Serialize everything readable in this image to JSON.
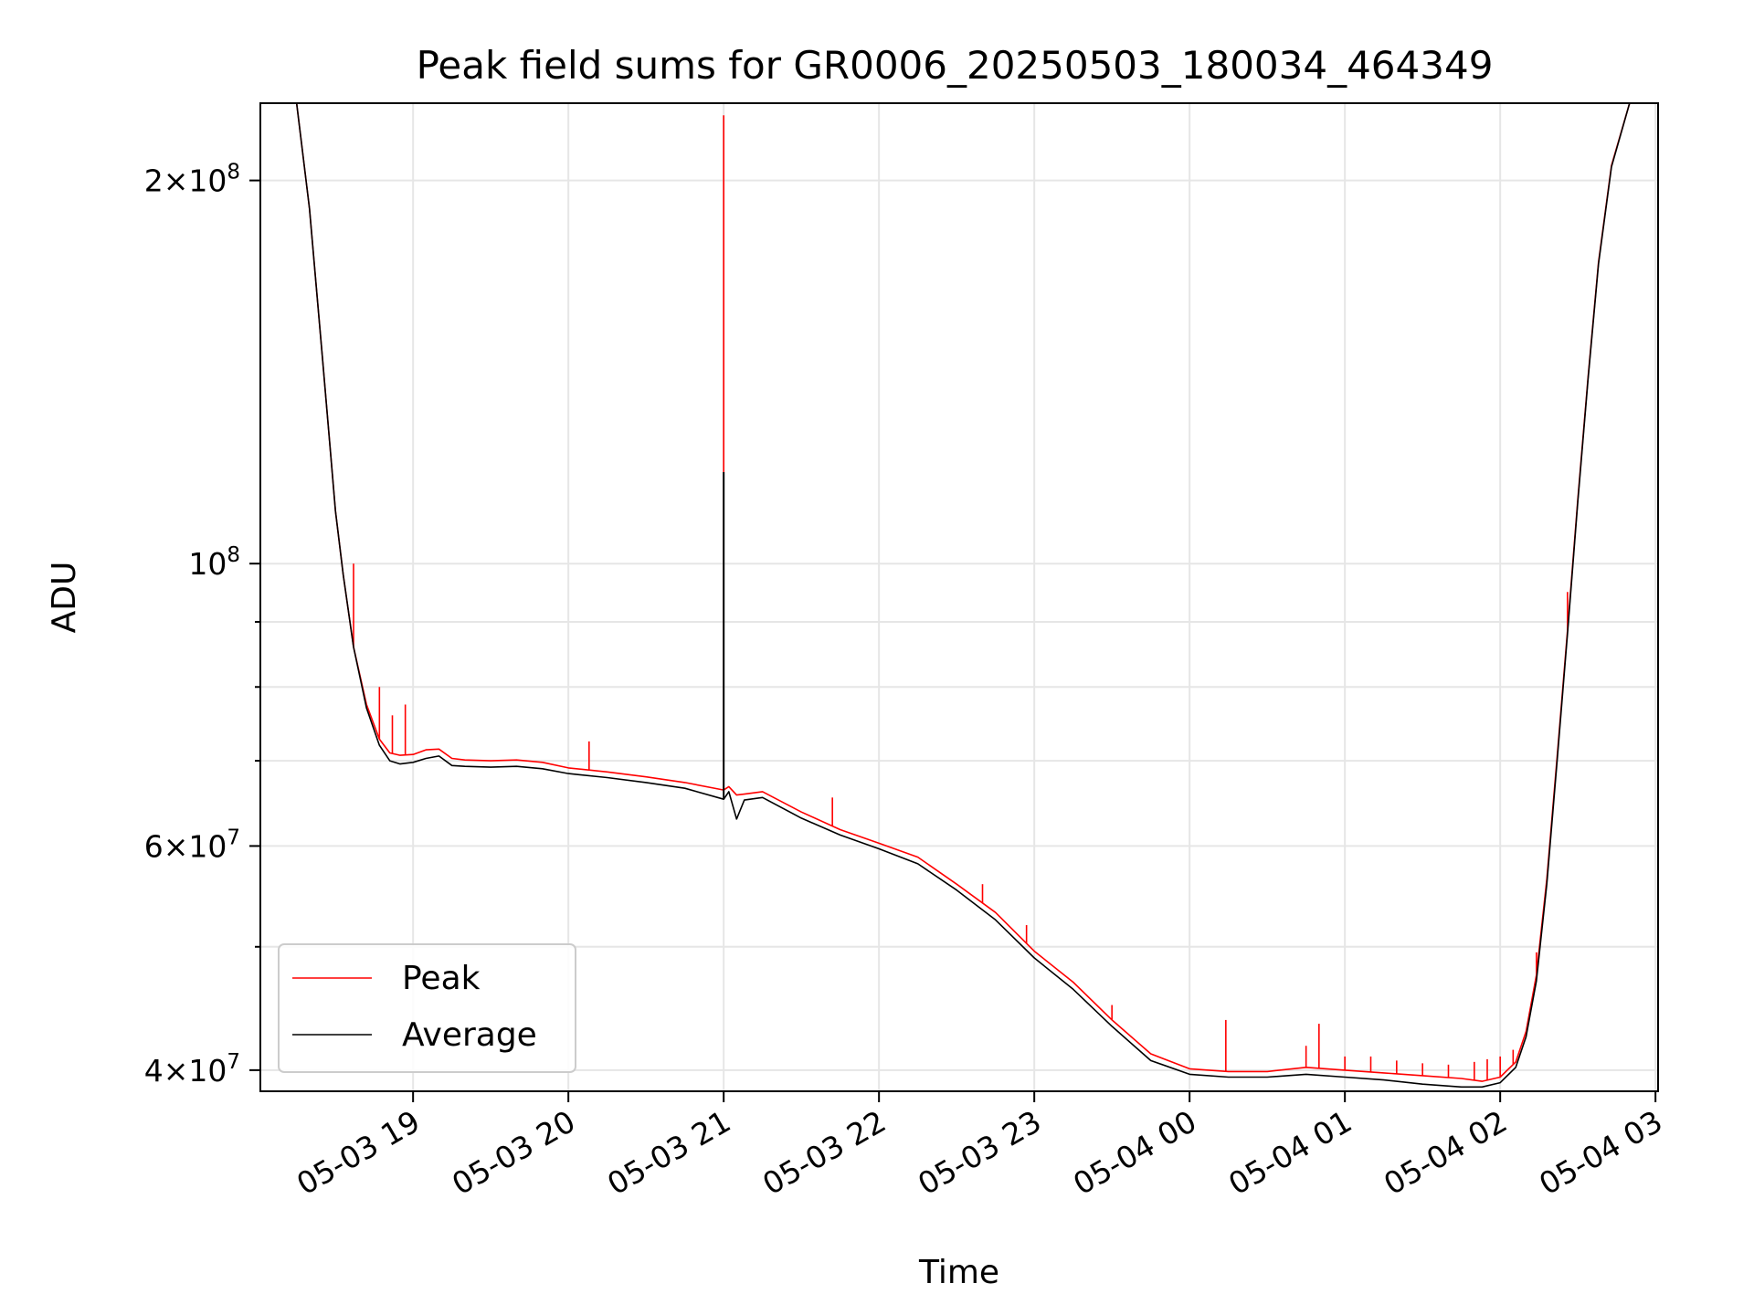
{
  "chart_data": {
    "type": "line",
    "title": "Peak field sums for GR0006_20250503_180034_464349",
    "xlabel": "Time",
    "ylabel": "ADU",
    "x_unit": "datetime",
    "xlim": [
      "2025-05-03 18:01",
      "2025-05-04 03:01"
    ],
    "y_scale": "log",
    "ylim": [
      38500000,
      230000000
    ],
    "x_ticks": [
      {
        "value": "2025-05-03 19:00",
        "label": "05-03 19"
      },
      {
        "value": "2025-05-03 20:00",
        "label": "05-03 20"
      },
      {
        "value": "2025-05-03 21:00",
        "label": "05-03 21"
      },
      {
        "value": "2025-05-03 22:00",
        "label": "05-03 22"
      },
      {
        "value": "2025-05-03 23:00",
        "label": "05-03 23"
      },
      {
        "value": "2025-05-04 00:00",
        "label": "05-04 00"
      },
      {
        "value": "2025-05-04 01:00",
        "label": "05-04 01"
      },
      {
        "value": "2025-05-04 02:00",
        "label": "05-04 02"
      },
      {
        "value": "2025-05-04 03:00",
        "label": "05-04 03"
      }
    ],
    "y_ticks_major": [
      {
        "value": 40000000,
        "base": "4",
        "exp": "7"
      },
      {
        "value": 60000000,
        "base": "6",
        "exp": "7"
      },
      {
        "value": 100000000,
        "base": "",
        "exp": "8"
      },
      {
        "value": 200000000,
        "base": "2",
        "exp": "8"
      }
    ],
    "y_ticks_minor": [
      50000000,
      70000000,
      80000000,
      90000000
    ],
    "grid": true,
    "legend": "lower-left",
    "colors": {
      "Peak": "#ff0000",
      "Average": "#000000"
    },
    "series": [
      {
        "name": "Average",
        "x": [
          "2025-05-03 18:01",
          "2025-05-03 18:15",
          "2025-05-03 18:20",
          "2025-05-03 18:25",
          "2025-05-03 18:28",
          "2025-05-03 18:30",
          "2025-05-03 18:33",
          "2025-05-03 18:37",
          "2025-05-03 18:42",
          "2025-05-03 18:47",
          "2025-05-03 18:51",
          "2025-05-03 18:55",
          "2025-05-03 19:00",
          "2025-05-03 19:05",
          "2025-05-03 19:10",
          "2025-05-03 19:15",
          "2025-05-03 19:20",
          "2025-05-03 19:30",
          "2025-05-03 19:40",
          "2025-05-03 19:50",
          "2025-05-03 20:00",
          "2025-05-03 20:15",
          "2025-05-03 20:30",
          "2025-05-03 20:45",
          "2025-05-03 21:00",
          "2025-05-03 21:02",
          "2025-05-03 21:05",
          "2025-05-03 21:08",
          "2025-05-03 21:15",
          "2025-05-03 21:30",
          "2025-05-03 21:45",
          "2025-05-03 22:00",
          "2025-05-03 22:15",
          "2025-05-03 22:30",
          "2025-05-03 22:45",
          "2025-05-03 23:00",
          "2025-05-03 23:15",
          "2025-05-03 23:30",
          "2025-05-03 23:45",
          "2025-05-04 00:00",
          "2025-05-04 00:15",
          "2025-05-04 00:30",
          "2025-05-04 00:45",
          "2025-05-04 01:00",
          "2025-05-04 01:15",
          "2025-05-04 01:30",
          "2025-05-04 01:45",
          "2025-05-04 01:53",
          "2025-05-04 02:00",
          "2025-05-04 02:06",
          "2025-05-04 02:10",
          "2025-05-04 02:14",
          "2025-05-04 02:18",
          "2025-05-04 02:22",
          "2025-05-04 02:26",
          "2025-05-04 02:30",
          "2025-05-04 02:34",
          "2025-05-04 02:38",
          "2025-05-04 02:43",
          "2025-05-04 02:50"
        ],
        "values": [
          230000000,
          230000000,
          190000000,
          145000000,
          123000000,
          110000000,
          98000000,
          86000000,
          77000000,
          72000000,
          70000000,
          69600000,
          69800000,
          70300000,
          70600000,
          69400000,
          69300000,
          69200000,
          69300000,
          69000000,
          68400000,
          67900000,
          67300000,
          66600000,
          65300000,
          66200000,
          63000000,
          65200000,
          65500000,
          63100000,
          61200000,
          59700000,
          58100000,
          55400000,
          52500000,
          49000000,
          46300000,
          43300000,
          40700000,
          39700000,
          39500000,
          39500000,
          39700000,
          39500000,
          39300000,
          39000000,
          38800000,
          38800000,
          39100000,
          40200000,
          42500000,
          47000000,
          56000000,
          70000000,
          88000000,
          112000000,
          140000000,
          172000000,
          205000000,
          230000000
        ]
      },
      {
        "name": "Peak",
        "x": [
          "2025-05-03 18:01",
          "2025-05-03 18:15",
          "2025-05-03 18:20",
          "2025-05-03 18:25",
          "2025-05-03 18:28",
          "2025-05-03 18:30",
          "2025-05-03 18:33",
          "2025-05-03 18:37",
          "2025-05-03 18:42",
          "2025-05-03 18:47",
          "2025-05-03 18:51",
          "2025-05-03 18:55",
          "2025-05-03 19:00",
          "2025-05-03 19:05",
          "2025-05-03 19:10",
          "2025-05-03 19:15",
          "2025-05-03 19:20",
          "2025-05-03 19:30",
          "2025-05-03 19:40",
          "2025-05-03 19:50",
          "2025-05-03 20:00",
          "2025-05-03 20:15",
          "2025-05-03 20:30",
          "2025-05-03 20:45",
          "2025-05-03 21:00",
          "2025-05-03 21:02",
          "2025-05-03 21:05",
          "2025-05-03 21:08",
          "2025-05-03 21:15",
          "2025-05-03 21:30",
          "2025-05-03 21:45",
          "2025-05-03 22:00",
          "2025-05-03 22:15",
          "2025-05-03 22:30",
          "2025-05-03 22:45",
          "2025-05-03 23:00",
          "2025-05-03 23:15",
          "2025-05-03 23:30",
          "2025-05-03 23:45",
          "2025-05-04 00:00",
          "2025-05-04 00:15",
          "2025-05-04 00:30",
          "2025-05-04 00:45",
          "2025-05-04 01:00",
          "2025-05-04 01:15",
          "2025-05-04 01:30",
          "2025-05-04 01:45",
          "2025-05-04 01:53",
          "2025-05-04 02:00",
          "2025-05-04 02:06",
          "2025-05-04 02:10",
          "2025-05-04 02:14",
          "2025-05-04 02:18",
          "2025-05-04 02:22",
          "2025-05-04 02:26",
          "2025-05-04 02:30",
          "2025-05-04 02:34",
          "2025-05-04 02:38",
          "2025-05-04 02:43",
          "2025-05-04 02:50"
        ],
        "values": [
          230000000,
          230000000,
          190000000,
          145000000,
          123000000,
          110000000,
          98000000,
          86000000,
          77500000,
          72800000,
          71000000,
          70700000,
          70800000,
          71400000,
          71500000,
          70300000,
          70100000,
          70000000,
          70100000,
          69800000,
          69100000,
          68600000,
          68000000,
          67300000,
          66400000,
          66800000,
          65800000,
          65900000,
          66200000,
          63800000,
          61800000,
          60300000,
          58800000,
          56000000,
          53200000,
          49600000,
          46900000,
          43800000,
          41200000,
          40100000,
          39900000,
          39900000,
          40200000,
          40000000,
          39800000,
          39600000,
          39400000,
          39200000,
          39500000,
          40600000,
          42900000,
          47500000,
          56500000,
          70500000,
          88500000,
          112500000,
          140500000,
          172500000,
          205500000,
          230000000
        ],
        "spikes": [
          {
            "x": "2025-05-03 18:37",
            "value": 100000000
          },
          {
            "x": "2025-05-03 18:47",
            "value": 80000000
          },
          {
            "x": "2025-05-03 18:52",
            "value": 76000000
          },
          {
            "x": "2025-05-03 18:57",
            "value": 77500000
          },
          {
            "x": "2025-05-03 20:08",
            "value": 72500000
          },
          {
            "x": "2025-05-03 21:00",
            "value": 225000000
          },
          {
            "x": "2025-05-03 21:42",
            "value": 65500000
          },
          {
            "x": "2025-05-03 22:40",
            "value": 56000000
          },
          {
            "x": "2025-05-03 22:57",
            "value": 52000000
          },
          {
            "x": "2025-05-03 23:30",
            "value": 45000000
          },
          {
            "x": "2025-05-04 00:14",
            "value": 43800000
          },
          {
            "x": "2025-05-04 00:45",
            "value": 41800000
          },
          {
            "x": "2025-05-04 00:50",
            "value": 43500000
          },
          {
            "x": "2025-05-04 01:00",
            "value": 41000000
          },
          {
            "x": "2025-05-04 01:10",
            "value": 41000000
          },
          {
            "x": "2025-05-04 01:20",
            "value": 40700000
          },
          {
            "x": "2025-05-04 01:30",
            "value": 40500000
          },
          {
            "x": "2025-05-04 01:40",
            "value": 40400000
          },
          {
            "x": "2025-05-04 01:50",
            "value": 40600000
          },
          {
            "x": "2025-05-04 01:55",
            "value": 40800000
          },
          {
            "x": "2025-05-04 02:00",
            "value": 41000000
          },
          {
            "x": "2025-05-04 02:05",
            "value": 41500000
          },
          {
            "x": "2025-05-04 02:14",
            "value": 49500000
          },
          {
            "x": "2025-05-04 02:26",
            "value": 95000000
          }
        ]
      }
    ]
  }
}
